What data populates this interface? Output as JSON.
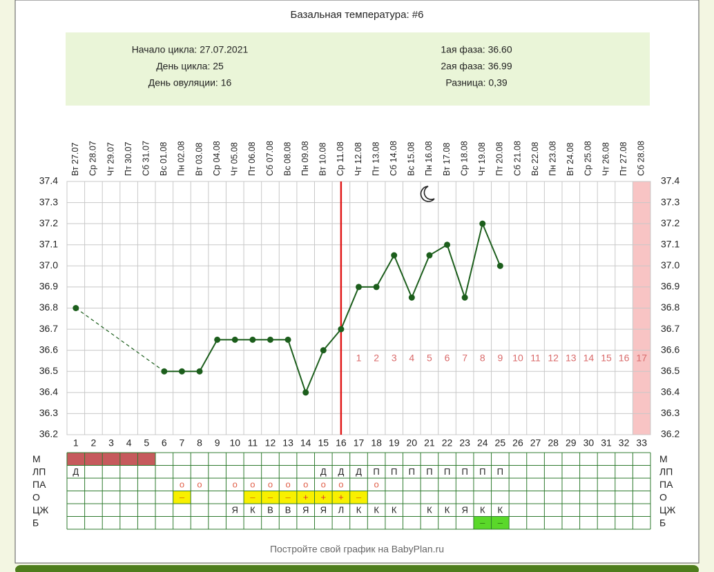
{
  "title": "Базальная температура: #6",
  "summary": {
    "left": [
      "Начало цикла: 27.07.2021",
      "День цикла: 25",
      "День овуляции: 16"
    ],
    "right": [
      "1ая фаза: 36.60",
      "2ая фаза: 36.99",
      "Разница: 0,39"
    ]
  },
  "chart_data": {
    "type": "line",
    "dates": [
      "Вт 27.07",
      "Ср 28.07",
      "Чт 29.07",
      "Пт 30.07",
      "Сб 31.07",
      "Вс 01.08",
      "Пн 02.08",
      "Вт 03.08",
      "Ср 04.08",
      "Чт 05.08",
      "Пт 06.08",
      "Сб 07.08",
      "Вс 08.08",
      "Пн 09.08",
      "Вт 10.08",
      "Ср 11.08",
      "Чт 12.08",
      "Пт 13.08",
      "Сб 14.08",
      "Вс 15.08",
      "Пн 16.08",
      "Вт 17.08",
      "Ср 18.08",
      "Чт 19.08",
      "Пт 20.08",
      "Сб 21.08",
      "Вс 22.08",
      "Пн 23.08",
      "Вт 24.08",
      "Ср 25.08",
      "Чт 26.08",
      "Пт 27.08",
      "Сб 28.08"
    ],
    "x": [
      1,
      2,
      3,
      4,
      5,
      6,
      7,
      8,
      9,
      10,
      11,
      12,
      13,
      14,
      15,
      16,
      17,
      18,
      19,
      20,
      21,
      22,
      23,
      24,
      25,
      26,
      27,
      28,
      29,
      30,
      31,
      32,
      33
    ],
    "xlim": [
      0.5,
      33.5
    ],
    "series": [
      {
        "color": "#1c5e1c",
        "values": [
          36.8,
          null,
          null,
          null,
          null,
          36.5,
          36.5,
          36.5,
          36.65,
          36.65,
          36.65,
          36.65,
          36.65,
          36.4,
          36.6,
          36.7,
          36.9,
          36.9,
          37.05,
          36.85,
          37.05,
          37.1,
          36.85,
          37.2,
          37.0,
          null,
          null,
          null,
          null,
          null,
          null,
          null,
          null
        ]
      }
    ],
    "ylim": [
      36.2,
      37.4
    ],
    "yticks": [
      36.2,
      36.3,
      36.4,
      36.5,
      36.6,
      36.7,
      36.8,
      36.9,
      {
        "value": 37.0,
        "label": "37.0"
      },
      37.1,
      37.2,
      37.3,
      37.4
    ],
    "grid": true,
    "ovulation_day": 16,
    "ovulation_color": "#e01818",
    "post_ovulation_days": [
      1,
      2,
      3,
      4,
      5,
      6,
      7,
      8,
      9,
      10,
      11,
      12,
      13,
      14,
      15,
      16,
      17
    ],
    "post_ovulation_color": "#d96a6a",
    "highlight_day": 33,
    "highlight_color": "#f8c4c4"
  },
  "table": {
    "rows": [
      {
        "label": "М",
        "cells": [
          {
            "day": 1,
            "fill": "#c65a5c"
          },
          {
            "day": 2,
            "fill": "#c65a5c"
          },
          {
            "day": 3,
            "fill": "#c65a5c"
          },
          {
            "day": 4,
            "fill": "#c65a5c"
          },
          {
            "day": 5,
            "fill": "#c65a5c"
          }
        ]
      },
      {
        "label": "ЛП",
        "cells": [
          {
            "day": 1,
            "text": "Д"
          },
          {
            "day": 15,
            "text": "Д"
          },
          {
            "day": 16,
            "text": "Д"
          },
          {
            "day": 17,
            "text": "Д"
          },
          {
            "day": 18,
            "text": "П"
          },
          {
            "day": 19,
            "text": "П"
          },
          {
            "day": 20,
            "text": "П"
          },
          {
            "day": 21,
            "text": "П"
          },
          {
            "day": 22,
            "text": "П"
          },
          {
            "day": 23,
            "text": "П"
          },
          {
            "day": 24,
            "text": "П"
          },
          {
            "day": 25,
            "text": "П"
          }
        ]
      },
      {
        "label": "ПА",
        "cells": [
          {
            "day": 7,
            "text": "o",
            "color": "#e0604a"
          },
          {
            "day": 8,
            "text": "o",
            "color": "#e0604a"
          },
          {
            "day": 10,
            "text": "o",
            "color": "#e0604a"
          },
          {
            "day": 11,
            "text": "o",
            "color": "#e0604a"
          },
          {
            "day": 12,
            "text": "o",
            "color": "#e0604a"
          },
          {
            "day": 13,
            "text": "o",
            "color": "#e0604a"
          },
          {
            "day": 14,
            "text": "o",
            "color": "#e0604a"
          },
          {
            "day": 15,
            "text": "o",
            "color": "#e0604a"
          },
          {
            "day": 16,
            "text": "o",
            "color": "#e0604a"
          },
          {
            "day": 18,
            "text": "o",
            "color": "#e0604a"
          }
        ]
      },
      {
        "label": "О",
        "cells": [
          {
            "day": 7,
            "text": "–",
            "fill": "#f8f000",
            "color": "#e07800"
          },
          {
            "day": 11,
            "text": "–",
            "fill": "#f8f000",
            "color": "#e07800"
          },
          {
            "day": 12,
            "text": "–",
            "fill": "#f8f000",
            "color": "#e07800"
          },
          {
            "day": 13,
            "text": "–",
            "fill": "#f8f000",
            "color": "#e07800"
          },
          {
            "day": 14,
            "text": "+",
            "fill": "#f8f000",
            "color": "#e03030"
          },
          {
            "day": 15,
            "text": "+",
            "fill": "#f8f000",
            "color": "#e03030"
          },
          {
            "day": 16,
            "text": "+",
            "fill": "#f8f000",
            "color": "#e03030"
          },
          {
            "day": 17,
            "text": "–",
            "fill": "#f8f000",
            "color": "#e07800"
          }
        ]
      },
      {
        "label": "ЦЖ",
        "cells": [
          {
            "day": 10,
            "text": "Я"
          },
          {
            "day": 11,
            "text": "К"
          },
          {
            "day": 12,
            "text": "В"
          },
          {
            "day": 13,
            "text": "В"
          },
          {
            "day": 14,
            "text": "Я"
          },
          {
            "day": 15,
            "text": "Я"
          },
          {
            "day": 16,
            "text": "Л"
          },
          {
            "day": 17,
            "text": "К"
          },
          {
            "day": 18,
            "text": "К"
          },
          {
            "day": 19,
            "text": "К"
          },
          {
            "day": 21,
            "text": "К"
          },
          {
            "day": 22,
            "text": "К"
          },
          {
            "day": 23,
            "text": "Я"
          },
          {
            "day": 24,
            "text": "К"
          },
          {
            "day": 25,
            "text": "К"
          }
        ]
      },
      {
        "label": "Б",
        "cells": [
          {
            "day": 24,
            "text": "–",
            "fill": "#5ad82a",
            "color": "#2a7a10"
          },
          {
            "day": 25,
            "text": "–",
            "fill": "#5ad82a",
            "color": "#2a7a10"
          }
        ]
      }
    ]
  },
  "footer": "Постройте свой график на BabyPlan.ru"
}
